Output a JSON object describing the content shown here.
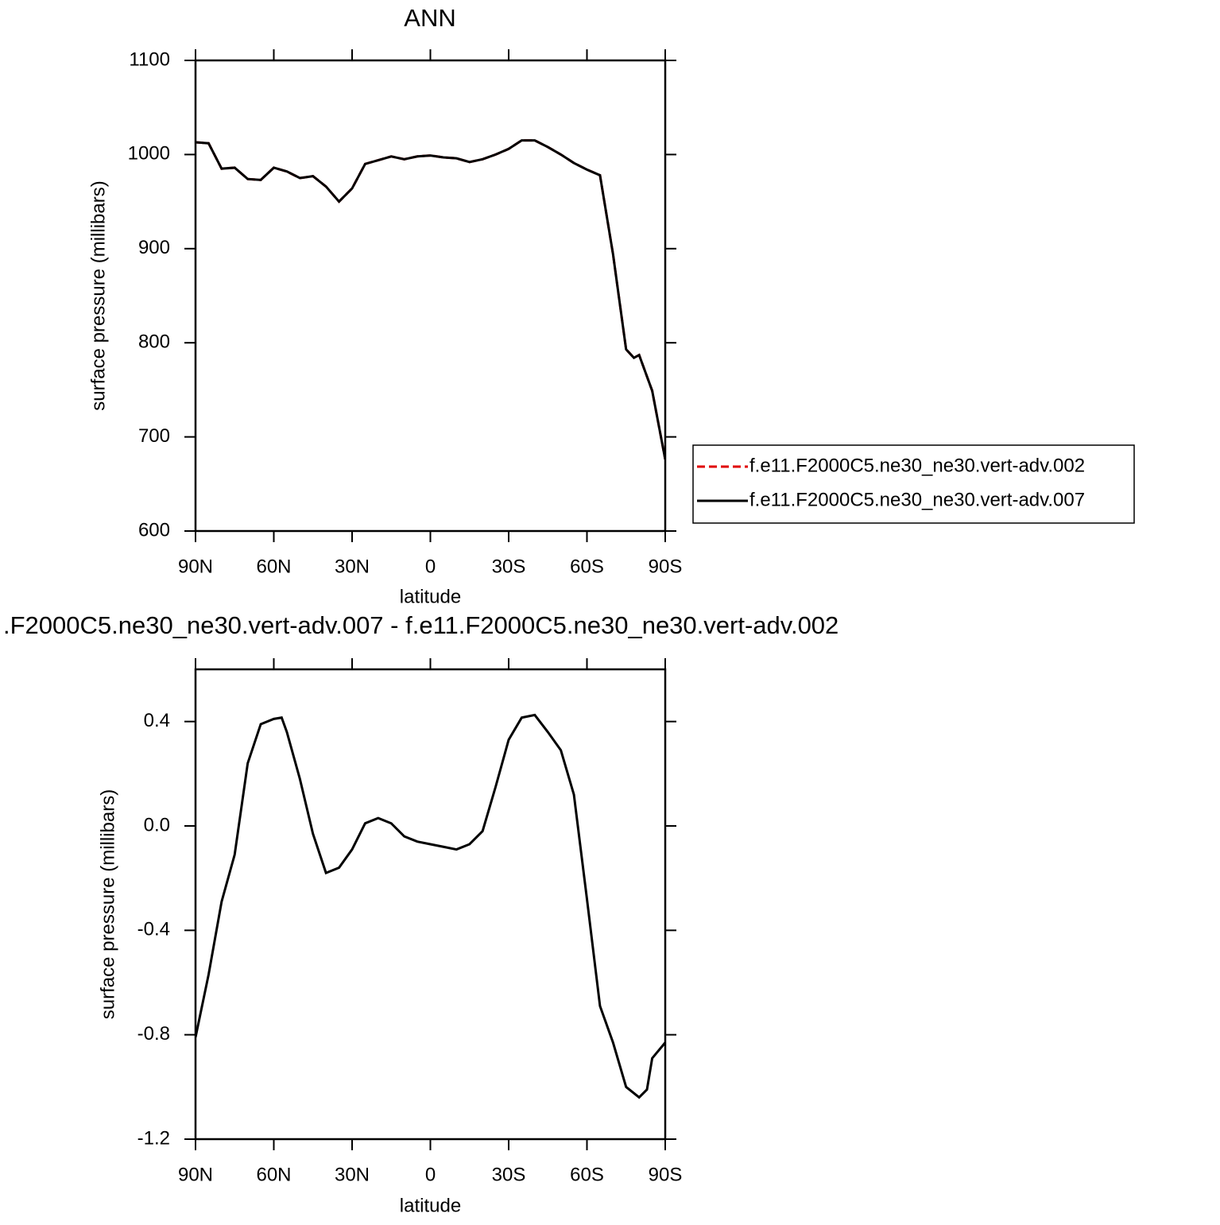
{
  "chart_data": [
    {
      "type": "line",
      "title": "ANN",
      "xlabel": "latitude",
      "ylabel": "surface pressure (millibars)",
      "x": [
        90,
        85,
        80,
        75,
        70,
        65,
        60,
        55,
        50,
        45,
        40,
        35,
        30,
        25,
        20,
        15,
        10,
        5,
        0,
        -5,
        -10,
        -15,
        -20,
        -25,
        -30,
        -35,
        -40,
        -45,
        -50,
        -55,
        -60,
        -65,
        -70,
        -75,
        -78,
        -80,
        -85,
        -90
      ],
      "series": [
        {
          "name": "f.e11.F2000C5.ne30_ne30.vert-adv.002",
          "color": "#e00000",
          "line_style": "dashed",
          "values": [
            1013,
            1012,
            985,
            986,
            974,
            973,
            986,
            982,
            975,
            977,
            966,
            950,
            964,
            990,
            994,
            998,
            995,
            998,
            999,
            997,
            996,
            992,
            995,
            1000,
            1006,
            1015,
            1015,
            1008,
            1000,
            991,
            984,
            978,
            894,
            793,
            784,
            787,
            749,
            676
          ]
        },
        {
          "name": "f.e11.F2000C5.ne30_ne30.vert-adv.007",
          "color": "#000000",
          "line_style": "solid",
          "values": [
            1013,
            1012,
            985,
            986,
            974,
            973,
            986,
            982,
            975,
            977,
            966,
            950,
            964,
            990,
            994,
            998,
            995,
            998,
            999,
            997,
            996,
            992,
            995,
            1000,
            1006,
            1015,
            1015,
            1008,
            1000,
            991,
            984,
            978,
            894,
            793,
            784,
            787,
            749,
            676
          ]
        }
      ],
      "xlim": [
        90,
        -90
      ],
      "xticks": [
        {
          "value": 90,
          "label": "90N"
        },
        {
          "value": 60,
          "label": "60N"
        },
        {
          "value": 30,
          "label": "30N"
        },
        0,
        {
          "value": -30,
          "label": "30S"
        },
        {
          "value": -60,
          "label": "60S"
        },
        {
          "value": -90,
          "label": "90S"
        }
      ],
      "ylim": [
        600,
        1100
      ],
      "yticks": [
        600,
        700,
        800,
        900,
        1000,
        1100
      ],
      "legend": "right"
    },
    {
      "type": "line",
      "title": ".F2000C5.ne30_ne30.vert-adv.007 - f.e11.F2000C5.ne30_ne30.vert-adv.002",
      "xlabel": "latitude",
      "ylabel": "surface pressure (millibars)",
      "x": [
        90,
        85,
        80,
        75,
        70,
        65,
        60,
        57,
        55,
        50,
        45,
        40,
        35,
        30,
        25,
        20,
        15,
        10,
        5,
        0,
        -5,
        -10,
        -15,
        -20,
        -25,
        -30,
        -35,
        -40,
        -45,
        -50,
        -55,
        -60,
        -65,
        -70,
        -75,
        -80,
        -83,
        -85,
        -90
      ],
      "series": [
        {
          "color": "#000000",
          "line_style": "solid",
          "values": [
            -0.81,
            -0.57,
            -0.29,
            -0.11,
            0.24,
            0.39,
            0.41,
            0.415,
            0.36,
            0.18,
            -0.03,
            -0.18,
            -0.16,
            -0.09,
            0.01,
            0.03,
            0.01,
            -0.04,
            -0.06,
            -0.07,
            -0.08,
            -0.09,
            -0.07,
            -0.02,
            0.15,
            0.33,
            0.415,
            0.425,
            0.36,
            0.29,
            0.12,
            -0.28,
            -0.69,
            -0.83,
            -1.0,
            -1.04,
            -1.01,
            -0.89,
            -0.83
          ]
        }
      ],
      "xlim": [
        90,
        -90
      ],
      "xticks": [
        {
          "value": 90,
          "label": "90N"
        },
        {
          "value": 60,
          "label": "60N"
        },
        {
          "value": 30,
          "label": "30N"
        },
        0,
        {
          "value": -30,
          "label": "30S"
        },
        {
          "value": -60,
          "label": "60S"
        },
        {
          "value": -90,
          "label": "90S"
        }
      ],
      "ylim": [
        -1.2,
        0.6
      ],
      "yticks": [
        -1.2,
        -0.8,
        -0.4,
        {
          "value": 0,
          "label": "0.0"
        },
        0.4
      ]
    }
  ]
}
